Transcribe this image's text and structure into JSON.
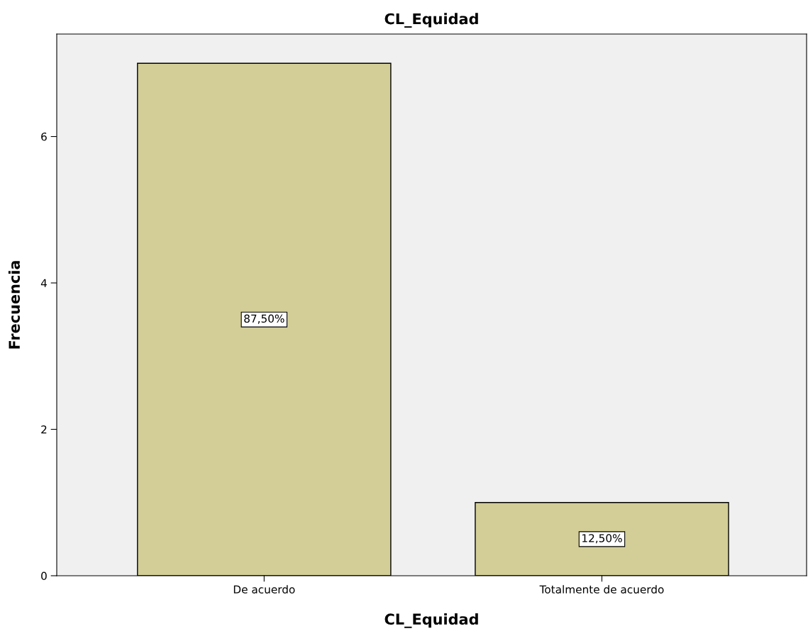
{
  "chart_data": {
    "type": "bar",
    "title": "CL_Equidad",
    "xlabel": "CL_Equidad",
    "ylabel": "Frecuencia",
    "categories": [
      "De acuerdo",
      "Totalmente de acuerdo"
    ],
    "values": [
      7,
      1
    ],
    "annotations": [
      "87,50%",
      "12,50%"
    ],
    "color": "#d3ce97",
    "ylim": [
      0,
      7.4
    ],
    "yticks": [
      0,
      2,
      4,
      6
    ],
    "grid": false,
    "legend": false
  }
}
